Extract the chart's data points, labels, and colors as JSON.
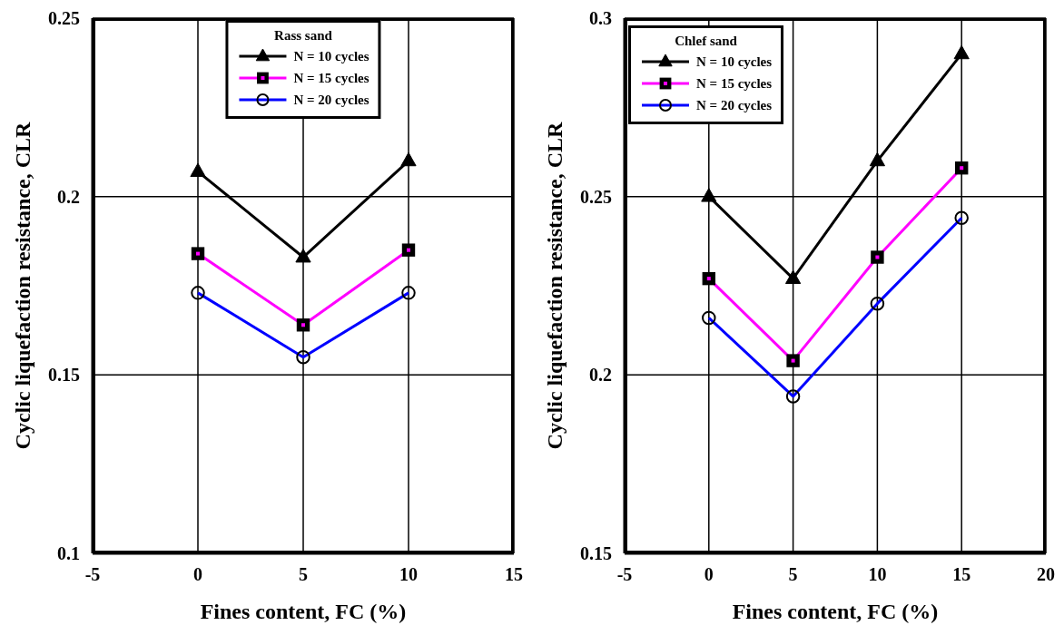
{
  "chart_data": [
    {
      "type": "line",
      "legend_title": "Rass sand",
      "xlabel": "Fines content, FC (%)",
      "ylabel": "Cyclic liquefaction resistance, CLR",
      "xlim": [
        -5,
        15
      ],
      "xticks": [
        -5,
        0,
        5,
        10,
        15
      ],
      "ylim": [
        0.1,
        0.25
      ],
      "yticks": [
        0.1,
        0.15,
        0.2,
        0.25
      ],
      "grid": true,
      "legend": "top",
      "x": [
        0,
        5,
        10
      ],
      "series": [
        {
          "name": "N = 10 cycles",
          "color": "#000000",
          "marker": "triangle",
          "values": [
            0.207,
            0.183,
            0.21
          ]
        },
        {
          "name": "N = 15 cycles",
          "color": "#ff00ff",
          "marker": "square",
          "values": [
            0.184,
            0.164,
            0.185
          ]
        },
        {
          "name": "N = 20 cycles",
          "color": "#0000ff",
          "marker": "circle",
          "values": [
            0.173,
            0.155,
            0.173
          ]
        }
      ]
    },
    {
      "type": "line",
      "legend_title": "Chlef sand",
      "xlabel": "Fines content, FC (%)",
      "ylabel": "Cyclic liquefaction resistance, CLR",
      "xlim": [
        -5,
        20
      ],
      "xticks": [
        -5,
        0,
        5,
        10,
        15,
        20
      ],
      "ylim": [
        0.15,
        0.3
      ],
      "yticks": [
        0.15,
        0.2,
        0.25,
        0.3
      ],
      "grid": true,
      "legend": "top left",
      "x": [
        0,
        5,
        10,
        15
      ],
      "series": [
        {
          "name": "N = 10 cycles",
          "color": "#000000",
          "marker": "triangle",
          "values": [
            0.25,
            0.227,
            0.26,
            0.29
          ]
        },
        {
          "name": "N = 15 cycles",
          "color": "#ff00ff",
          "marker": "square",
          "values": [
            0.227,
            0.204,
            0.233,
            0.258
          ]
        },
        {
          "name": "N = 20 cycles",
          "color": "#0000ff",
          "marker": "circle",
          "values": [
            0.216,
            0.194,
            0.22,
            0.244
          ]
        }
      ]
    }
  ]
}
